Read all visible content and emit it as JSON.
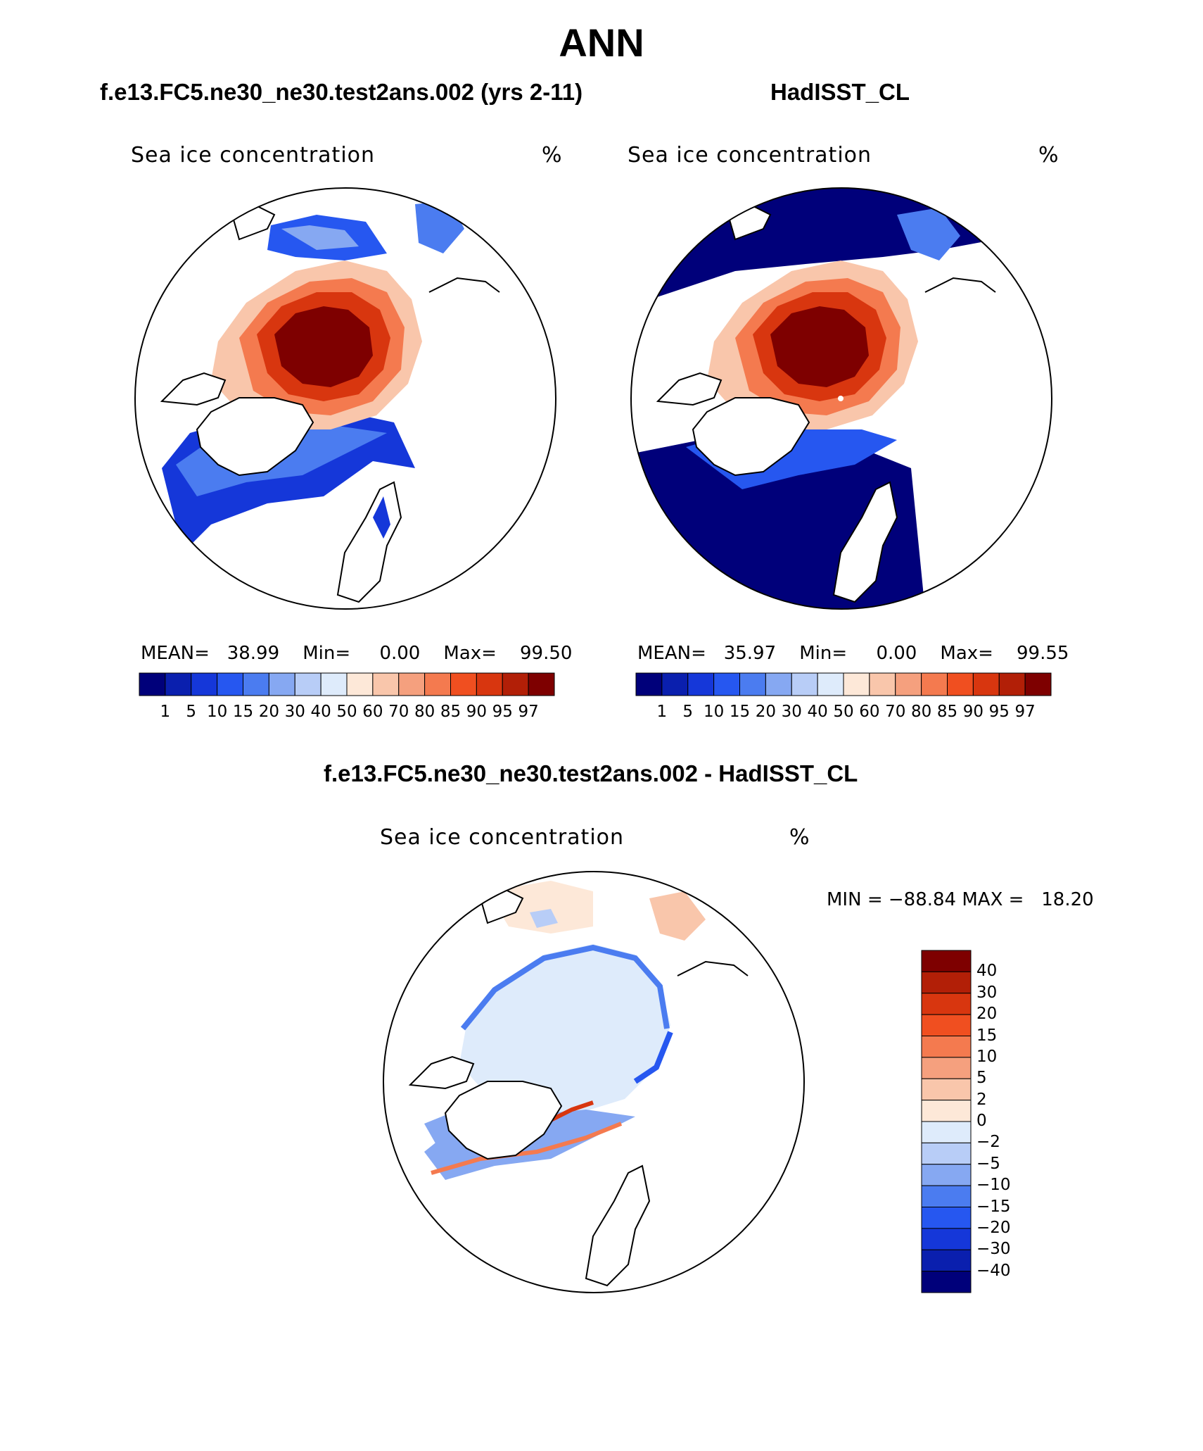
{
  "figure": {
    "title": "ANN",
    "panel_left": {
      "subtitle": "f.e13.FC5.ne30_ne30.test2ans.002 (yrs 2-11)",
      "variable": "Sea ice concentration",
      "units": "%",
      "mean_label": "MEAN=",
      "mean": "38.99",
      "min_label": "Min=",
      "min": "0.00",
      "max_label": "Max=",
      "max": "99.50"
    },
    "panel_right": {
      "subtitle": "HadISST_CL",
      "variable": "Sea ice concentration",
      "units": "%",
      "mean_label": "MEAN=",
      "mean": "35.97",
      "min_label": "Min=",
      "min": "0.00",
      "max_label": "Max=",
      "max": "99.55"
    },
    "panel_diff": {
      "subtitle": "f.e13.FC5.ne30_ne30.test2ans.002 - HadISST_CL",
      "variable": "Sea ice concentration",
      "units": "%",
      "min_label": "MIN =",
      "min": "−88.84",
      "max_label": "MAX =",
      "max": "18.20"
    }
  },
  "colorbar_abs": {
    "levels": [
      "1",
      "5",
      "10",
      "15",
      "20",
      "30",
      "40",
      "50",
      "60",
      "70",
      "80",
      "85",
      "90",
      "95",
      "97"
    ],
    "colors": [
      "#00007a",
      "#0a1fae",
      "#1537d9",
      "#2657f0",
      "#4b7cf0",
      "#86a8f2",
      "#b8cdf7",
      "#deebfb",
      "#fde8d8",
      "#f9c6ab",
      "#f5a07e",
      "#f47a4f",
      "#f04f20",
      "#d8360f",
      "#b21f07",
      "#7e0000"
    ]
  },
  "colorbar_diff": {
    "levels": [
      "40",
      "30",
      "20",
      "15",
      "10",
      "5",
      "2",
      "0",
      "−2",
      "−5",
      "−10",
      "−15",
      "−20",
      "−30",
      "−40"
    ],
    "colors": [
      "#7e0000",
      "#b21f07",
      "#d8360f",
      "#f04f20",
      "#f47a4f",
      "#f5a07e",
      "#f9c6ab",
      "#fde8d8",
      "#deebfb",
      "#b8cdf7",
      "#86a8f2",
      "#4b7cf0",
      "#2657f0",
      "#1537d9",
      "#0a1fae",
      "#00007a"
    ]
  },
  "chart_data": {
    "type": "heatmap",
    "title": "ANN",
    "panels": [
      {
        "name": "f.e13.FC5.ne30_ne30.test2ans.002 (yrs 2-11)",
        "variable": "Sea ice concentration",
        "units": "%",
        "mean": 38.99,
        "min": 0.0,
        "max": 99.5
      },
      {
        "name": "HadISST_CL",
        "variable": "Sea ice concentration",
        "units": "%",
        "mean": 35.97,
        "min": 0.0,
        "max": 99.55
      },
      {
        "name": "f.e13.FC5.ne30_ne30.test2ans.002 - HadISST_CL",
        "variable": "Sea ice concentration",
        "units": "%",
        "min": -88.84,
        "max": 18.2
      }
    ],
    "contour_levels_abs": [
      1,
      5,
      10,
      15,
      20,
      30,
      40,
      50,
      60,
      70,
      80,
      85,
      90,
      95,
      97
    ],
    "contour_levels_diff": [
      -40,
      -30,
      -20,
      -15,
      -10,
      -5,
      -2,
      0,
      2,
      5,
      10,
      15,
      20,
      30,
      40
    ],
    "projection": "north polar stereographic"
  }
}
